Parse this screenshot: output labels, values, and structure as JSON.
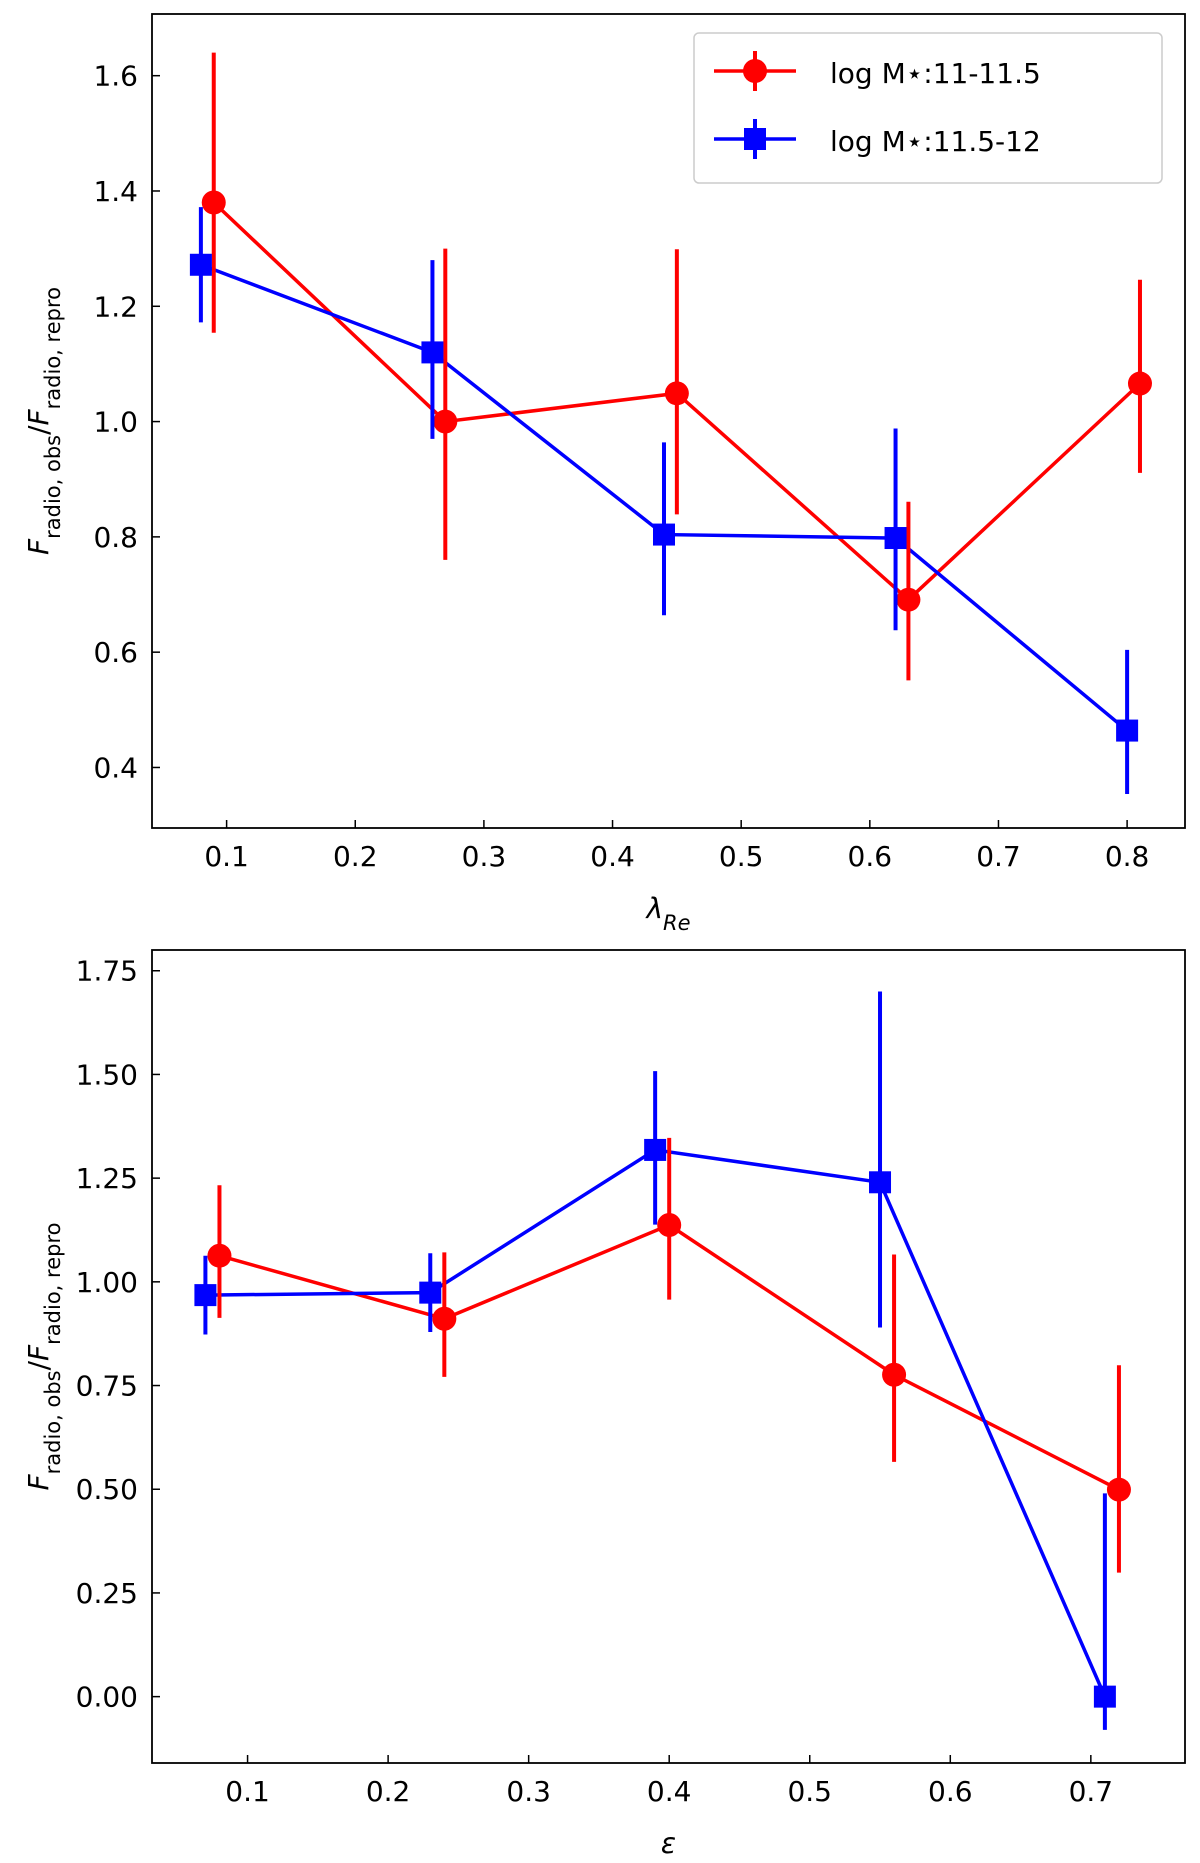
{
  "chart_data": [
    {
      "type": "line",
      "xlabel": [
        {
          "text": "λ",
          "style": "italic"
        },
        {
          "text": "Re",
          "style": "sub-italic"
        }
      ],
      "ylabel": [
        {
          "text": "F",
          "style": "italic"
        },
        {
          "text": "radio, obs",
          "style": "sub"
        },
        {
          "text": "/",
          "style": "normal"
        },
        {
          "text": "F",
          "style": "italic"
        },
        {
          "text": "radio, repro",
          "style": "sub"
        }
      ],
      "xlim": [
        0.042,
        0.845
      ],
      "ylim": [
        0.295,
        1.707
      ],
      "xticks": [
        0.1,
        0.2,
        0.3,
        0.4,
        0.5,
        0.6,
        0.7,
        0.8
      ],
      "yticks": [
        0.4,
        0.6,
        0.8,
        {
          "value": 1,
          "label": "1.0"
        },
        1.2,
        1.4,
        1.6
      ],
      "legend": "upper right",
      "series": [
        {
          "name": "log M⋆:11-11.5",
          "color": "#ff0000",
          "marker": "circle",
          "x": [
            0.09,
            0.27,
            0.45,
            0.63,
            0.81
          ],
          "values": [
            1.38,
            1.0,
            1.049,
            0.691,
            1.066
          ],
          "yerr_low": [
            0.226,
            0.24,
            0.21,
            0.14,
            0.155
          ],
          "yerr_high": [
            0.26,
            0.3,
            0.25,
            0.17,
            0.18
          ]
        },
        {
          "name": "log M⋆:11.5-12",
          "color": "#0000ff",
          "marker": "square",
          "x": [
            0.08,
            0.26,
            0.44,
            0.62,
            0.8
          ],
          "values": [
            1.272,
            1.12,
            0.804,
            0.798,
            0.464
          ],
          "yerr_low": [
            0.1,
            0.15,
            0.14,
            0.16,
            0.11
          ],
          "yerr_high": [
            0.1,
            0.16,
            0.16,
            0.19,
            0.14
          ]
        }
      ]
    },
    {
      "type": "line",
      "xlabel": [
        {
          "text": "ε",
          "style": "italic"
        }
      ],
      "ylabel": [
        {
          "text": "F",
          "style": "italic"
        },
        {
          "text": "radio, obs",
          "style": "sub"
        },
        {
          "text": "/",
          "style": "normal"
        },
        {
          "text": "F",
          "style": "italic"
        },
        {
          "text": "radio, repro",
          "style": "sub"
        }
      ],
      "xlim": [
        0.032,
        0.767
      ],
      "ylim": [
        -0.16,
        1.8
      ],
      "xticks": [
        0.1,
        0.2,
        0.3,
        0.4,
        0.5,
        0.6,
        0.7
      ],
      "yticks": [
        {
          "value": 0,
          "label": "0.00"
        },
        0.25,
        {
          "value": 0.5,
          "label": "0.50"
        },
        0.75,
        {
          "value": 1,
          "label": "1.00"
        },
        1.25,
        {
          "value": 1.5,
          "label": "1.50"
        },
        1.75
      ],
      "series": [
        {
          "color": "#ff0000",
          "marker": "circle",
          "x": [
            0.08,
            0.24,
            0.4,
            0.56,
            0.72
          ],
          "values": [
            1.063,
            0.911,
            1.137,
            0.776,
            0.499
          ],
          "yerr_low": [
            0.15,
            0.14,
            0.18,
            0.21,
            0.2
          ],
          "yerr_high": [
            0.17,
            0.16,
            0.21,
            0.29,
            0.3
          ]
        },
        {
          "color": "#0000ff",
          "marker": "square",
          "x": [
            0.07,
            0.23,
            0.39,
            0.55,
            0.71
          ],
          "values": [
            0.968,
            0.974,
            1.318,
            1.24,
            0.0
          ],
          "yerr_low": [
            0.095,
            0.095,
            0.18,
            0.35,
            0.08
          ],
          "yerr_high": [
            0.095,
            0.095,
            0.19,
            0.46,
            0.49
          ]
        }
      ]
    }
  ]
}
